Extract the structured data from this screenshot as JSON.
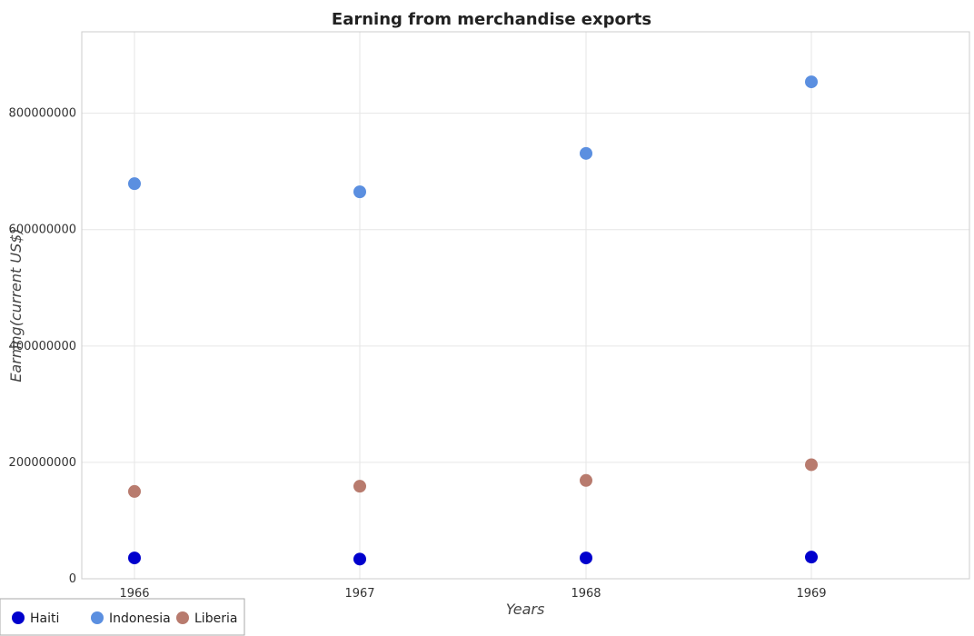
{
  "chart_data": {
    "type": "scatter",
    "title": "Earning from merchandise exports",
    "xlabel": "Years",
    "ylabel": "Earning(current US$)",
    "categories": [
      "1966",
      "1967",
      "1968",
      "1969"
    ],
    "ylim": [
      0,
      940000000
    ],
    "yticks": [
      0,
      200000000,
      400000000,
      600000000,
      800000000
    ],
    "ytick_labels": [
      "0",
      "200000000",
      "400000000",
      "600000000",
      "800000000"
    ],
    "grid": true,
    "legend_position": "bottom-left",
    "series": [
      {
        "name": "Haiti",
        "color": "#0000cd",
        "values": [
          35800000,
          33800000,
          35800000,
          37200000
        ]
      },
      {
        "name": "Indonesia",
        "color": "#5b8fe0",
        "values": [
          679000000,
          665000000,
          731000000,
          854000000
        ]
      },
      {
        "name": "Liberia",
        "color": "#b87b6e",
        "values": [
          150000000,
          159000000,
          169000000,
          196000000
        ]
      }
    ]
  }
}
